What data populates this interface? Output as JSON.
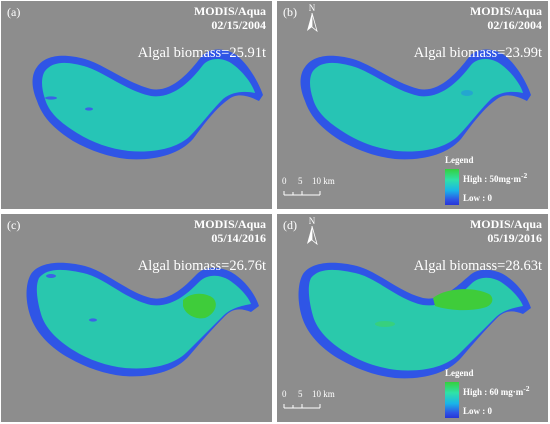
{
  "panels": [
    {
      "letter": "(a)",
      "sensor": "MODIS/Aqua",
      "date": "02/15/2004",
      "biomass": "Algal biomass=25.91t"
    },
    {
      "letter": "(b)",
      "sensor": "MODIS/Aqua",
      "date": "02/16/2004",
      "biomass": "Algal biomass=23.99t"
    },
    {
      "letter": "(c)",
      "sensor": "MODIS/Aqua",
      "date": "05/14/2016",
      "biomass": "Algal biomass=26.76t"
    },
    {
      "letter": "(d)",
      "sensor": "MODIS/Aqua",
      "date": "05/19/2016",
      "biomass": "Algal biomass=28.63t"
    }
  ],
  "north_arrow": "N",
  "scale": {
    "labels": [
      "0",
      "5",
      "10 km"
    ]
  },
  "legends": [
    {
      "title": "Legend",
      "high": "High : 50mg·m",
      "high_exp": "-2",
      "low": "Low : 0"
    },
    {
      "title": "Legend",
      "high": "High : 60 mg·m",
      "high_exp": "-2",
      "low": "Low : 0"
    }
  ],
  "colors": {
    "background": "#8d8d8d",
    "lake_edge": "#2f4fe0",
    "lake_body": "#26c3b4",
    "bloom": "#3fcc3a"
  }
}
